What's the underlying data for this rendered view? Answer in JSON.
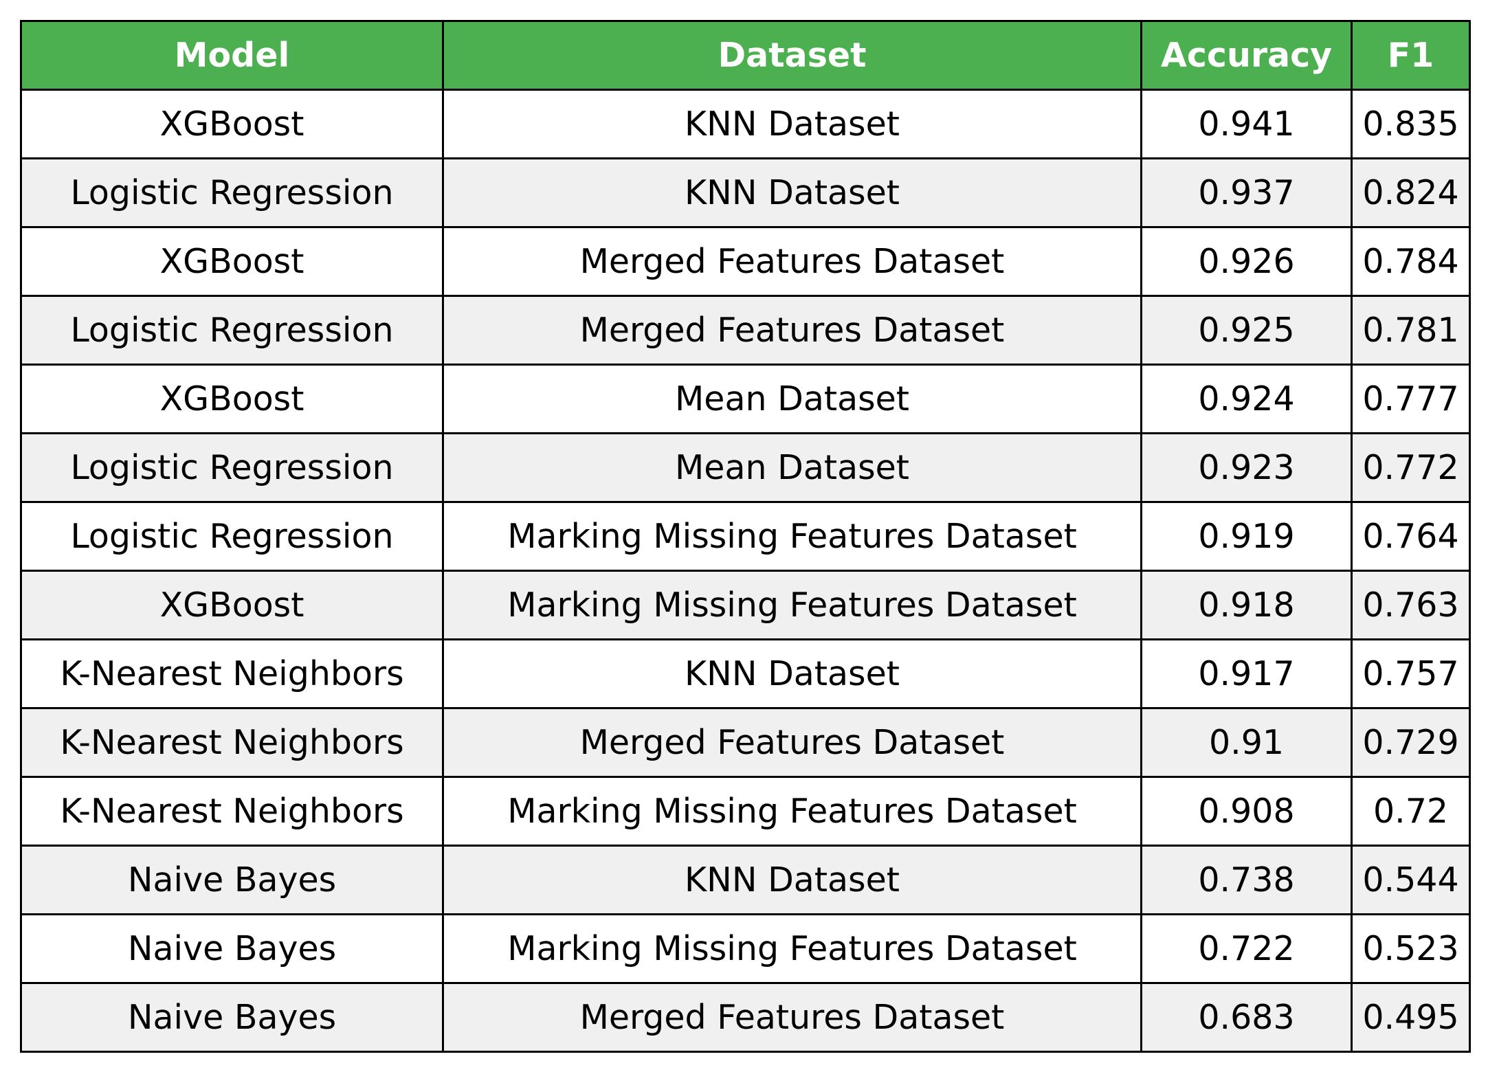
{
  "chart_data": {
    "type": "table",
    "columns": [
      "Model",
      "Dataset",
      "Accuracy",
      "F1"
    ],
    "rows": [
      [
        "XGBoost",
        "KNN Dataset",
        "0.941",
        "0.835"
      ],
      [
        "Logistic Regression",
        "KNN Dataset",
        "0.937",
        "0.824"
      ],
      [
        "XGBoost",
        "Merged Features Dataset",
        "0.926",
        "0.784"
      ],
      [
        "Logistic Regression",
        "Merged Features Dataset",
        "0.925",
        "0.781"
      ],
      [
        "XGBoost",
        "Mean Dataset",
        "0.924",
        "0.777"
      ],
      [
        "Logistic Regression",
        "Mean Dataset",
        "0.923",
        "0.772"
      ],
      [
        "Logistic Regression",
        "Marking Missing Features Dataset",
        "0.919",
        "0.764"
      ],
      [
        "XGBoost",
        "Marking Missing Features Dataset",
        "0.918",
        "0.763"
      ],
      [
        "K-Nearest Neighbors",
        "KNN Dataset",
        "0.917",
        "0.757"
      ],
      [
        "K-Nearest Neighbors",
        "Merged Features Dataset",
        "0.91",
        "0.729"
      ],
      [
        "K-Nearest Neighbors",
        "Marking Missing Features Dataset",
        "0.908",
        "0.72"
      ],
      [
        "Naive Bayes",
        "KNN Dataset",
        "0.738",
        "0.544"
      ],
      [
        "Naive Bayes",
        "Marking Missing Features Dataset",
        "0.722",
        "0.523"
      ],
      [
        "Naive Bayes",
        "Merged Features Dataset",
        "0.683",
        "0.495"
      ]
    ]
  },
  "colors": {
    "header_bg": "#4caf50",
    "header_text": "#ffffff",
    "row_alt_bg": "#f0f0f0",
    "row_bg": "#ffffff",
    "border": "#000000"
  }
}
